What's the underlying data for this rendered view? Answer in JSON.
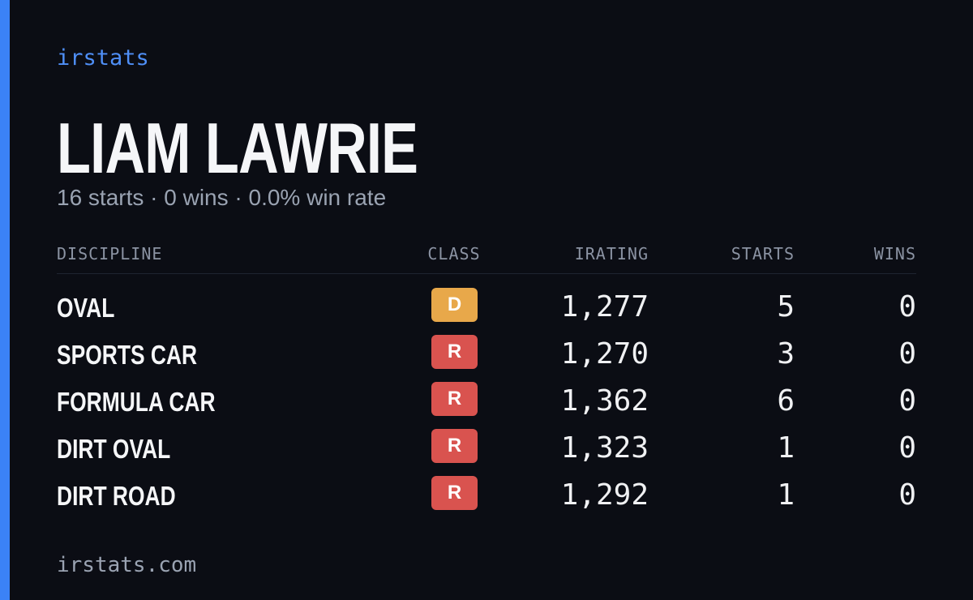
{
  "brand": "irstats",
  "driver": {
    "name": "LIAM LAWRIE",
    "summary": "16 starts · 0 wins · 0.0% win rate"
  },
  "table": {
    "headers": [
      "DISCIPLINE",
      "CLASS",
      "IRATING",
      "STARTS",
      "WINS"
    ],
    "rows": [
      [
        "OVAL",
        "D",
        "1,277",
        5,
        0
      ],
      [
        "SPORTS CAR",
        "R",
        "1,270",
        3,
        0
      ],
      [
        "FORMULA CAR",
        "R",
        "1,362",
        6,
        0
      ],
      [
        "DIRT OVAL",
        "R",
        "1,323",
        1,
        0
      ],
      [
        "DIRT ROAD",
        "R",
        "1,292",
        1,
        0
      ]
    ]
  },
  "footer": "irstats.com"
}
